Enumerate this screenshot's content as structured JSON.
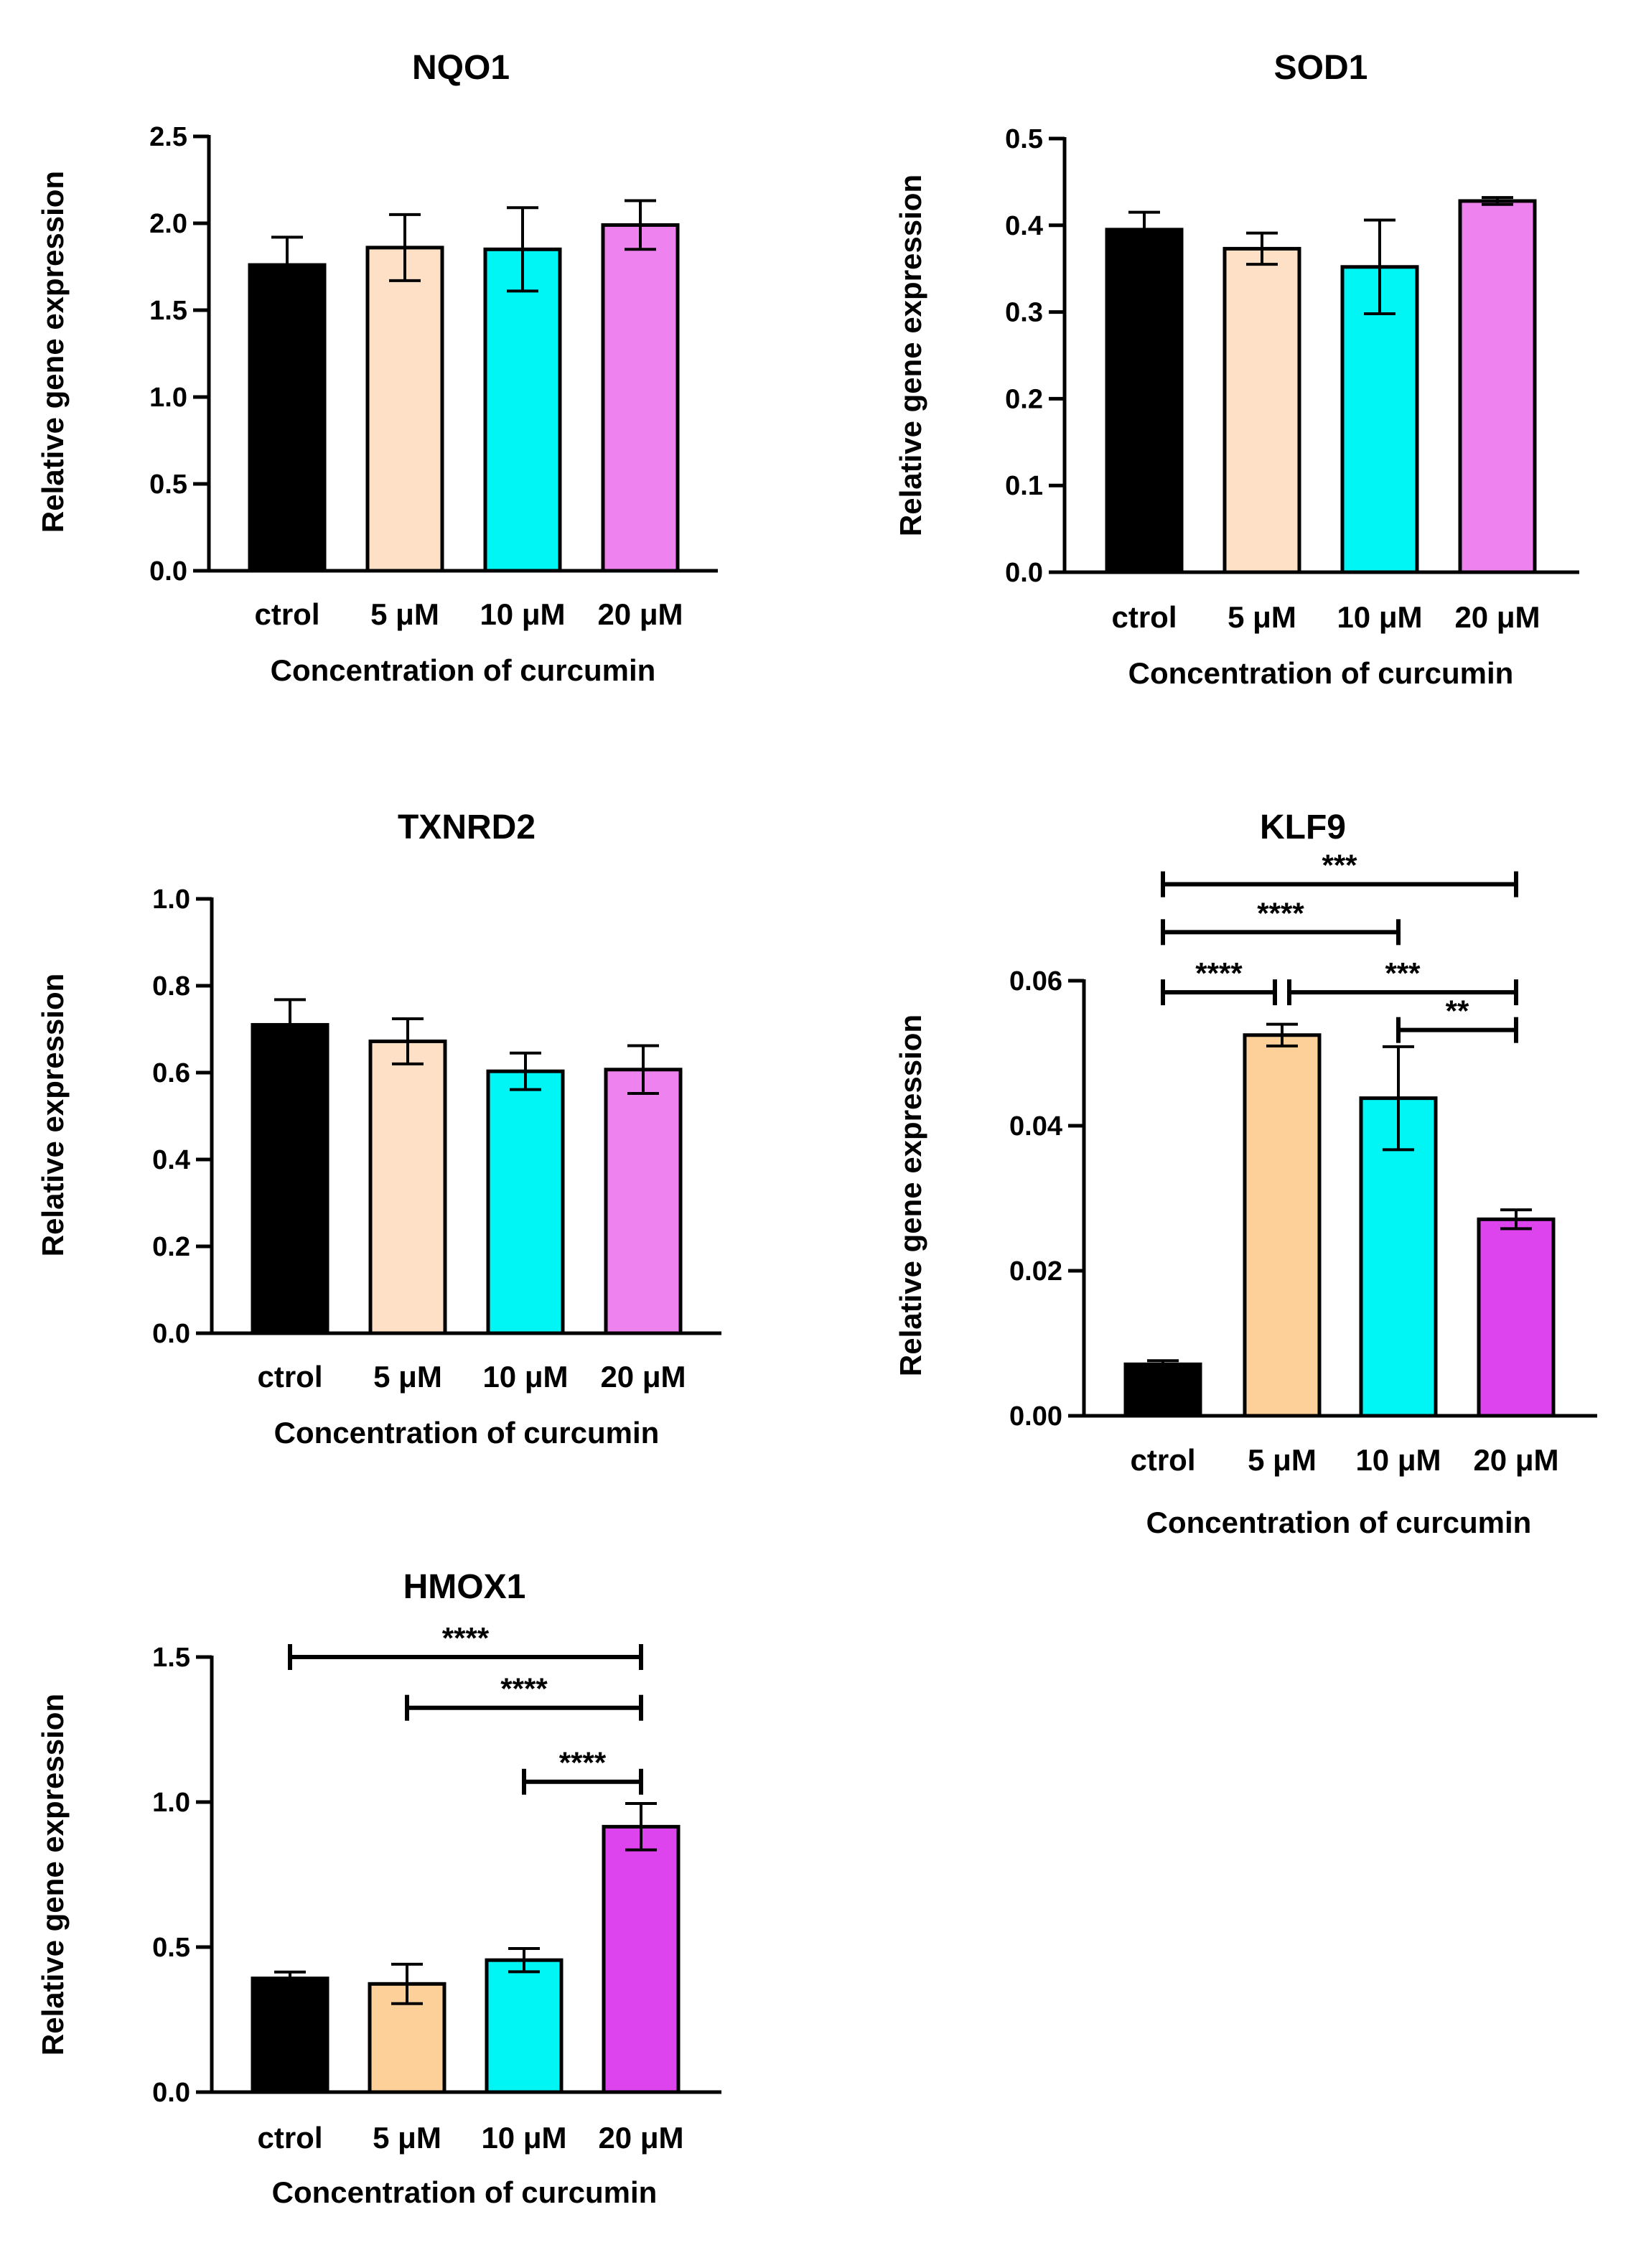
{
  "chart_data": [
    {
      "type": "bar",
      "title": "NQO1",
      "xlabel": "Concentration of curcumin",
      "ylabel": "Relative gene expression",
      "categories": [
        "ctrol",
        "5 μM",
        "10 μM",
        "20 μM"
      ],
      "values": [
        1.76,
        1.86,
        1.85,
        1.99
      ],
      "errors": [
        0.16,
        0.19,
        0.24,
        0.14
      ],
      "colors": [
        "#000000",
        "#fde0c5",
        "#00f5f5",
        "#ee82ee"
      ],
      "ylim": [
        0,
        2.5
      ],
      "yticks": [
        "0.0",
        "0.5",
        "1.0",
        "1.5",
        "2.0",
        "2.5"
      ],
      "significance": []
    },
    {
      "type": "bar",
      "title": "SOD1",
      "xlabel": "Concentration of curcumin",
      "ylabel": "Relative gene expression",
      "categories": [
        "ctrol",
        "5 μM",
        "10 μM",
        "20 μM"
      ],
      "values": [
        0.395,
        0.373,
        0.352,
        0.428
      ],
      "errors": [
        0.02,
        0.018,
        0.054,
        0.004
      ],
      "colors": [
        "#000000",
        "#fde0c5",
        "#00f5f5",
        "#ee82ee"
      ],
      "ylim": [
        0,
        0.5
      ],
      "yticks": [
        "0.0",
        "0.1",
        "0.2",
        "0.3",
        "0.4",
        "0.5"
      ],
      "significance": []
    },
    {
      "type": "bar",
      "title": "TXNRD2",
      "xlabel": "Concentration of curcumin",
      "ylabel": "Relative expression",
      "categories": [
        "ctrol",
        "5 μM",
        "10 μM",
        "20 μM"
      ],
      "values": [
        0.71,
        0.672,
        0.603,
        0.607
      ],
      "errors": [
        0.058,
        0.052,
        0.042,
        0.055
      ],
      "colors": [
        "#000000",
        "#fde0c5",
        "#00f5f5",
        "#ee82ee"
      ],
      "ylim": [
        0,
        1.0
      ],
      "yticks": [
        "0.0",
        "0.2",
        "0.4",
        "0.6",
        "0.8",
        "1.0"
      ],
      "significance": []
    },
    {
      "type": "bar",
      "title": "KLF9",
      "xlabel": "Concentration of curcumin",
      "ylabel": "Relative gene expression",
      "categories": [
        "ctrol",
        "5 μM",
        "10 μM",
        "20 μM"
      ],
      "values": [
        0.0071,
        0.0525,
        0.0438,
        0.0271
      ],
      "errors": [
        0.0005,
        0.0015,
        0.0071,
        0.0013
      ],
      "colors": [
        "#000000",
        "#fdd099",
        "#00f5f5",
        "#dd44ee"
      ],
      "ylim": [
        0,
        0.06
      ],
      "yticks": [
        "0.00",
        "0.02",
        "0.04",
        "0.06"
      ],
      "significance": [
        {
          "from": 0,
          "to": 3,
          "level": 0.0733,
          "label": "***"
        },
        {
          "from": 0,
          "to": 2,
          "level": 0.0667,
          "label": "****"
        },
        {
          "from": 0,
          "to": 1,
          "level": 0.0584,
          "label": "****"
        },
        {
          "from": 1,
          "to": 3,
          "level": 0.0584,
          "label": "***"
        },
        {
          "from": 2,
          "to": 3,
          "level": 0.0532,
          "label": "**"
        }
      ]
    },
    {
      "type": "bar",
      "title": "HMOX1",
      "xlabel": "Concentration of curcumin",
      "ylabel": "Relative gene expression",
      "categories": [
        "ctrol",
        "5 μM",
        "10 μM",
        "20 μM"
      ],
      "values": [
        0.392,
        0.373,
        0.455,
        0.915
      ],
      "errors": [
        0.022,
        0.068,
        0.04,
        0.08
      ],
      "colors": [
        "#000000",
        "#fdd099",
        "#00f5f5",
        "#dd44ee"
      ],
      "ylim": [
        0,
        1.5
      ],
      "yticks": [
        "0.0",
        "0.5",
        "1.0",
        "1.5"
      ],
      "significance": [
        {
          "from": 0,
          "to": 3,
          "level": 1.5,
          "label": "****"
        },
        {
          "from": 1,
          "to": 3,
          "level": 1.325,
          "label": "****"
        },
        {
          "from": 2,
          "to": 3,
          "level": 1.07,
          "label": "****"
        }
      ]
    }
  ]
}
